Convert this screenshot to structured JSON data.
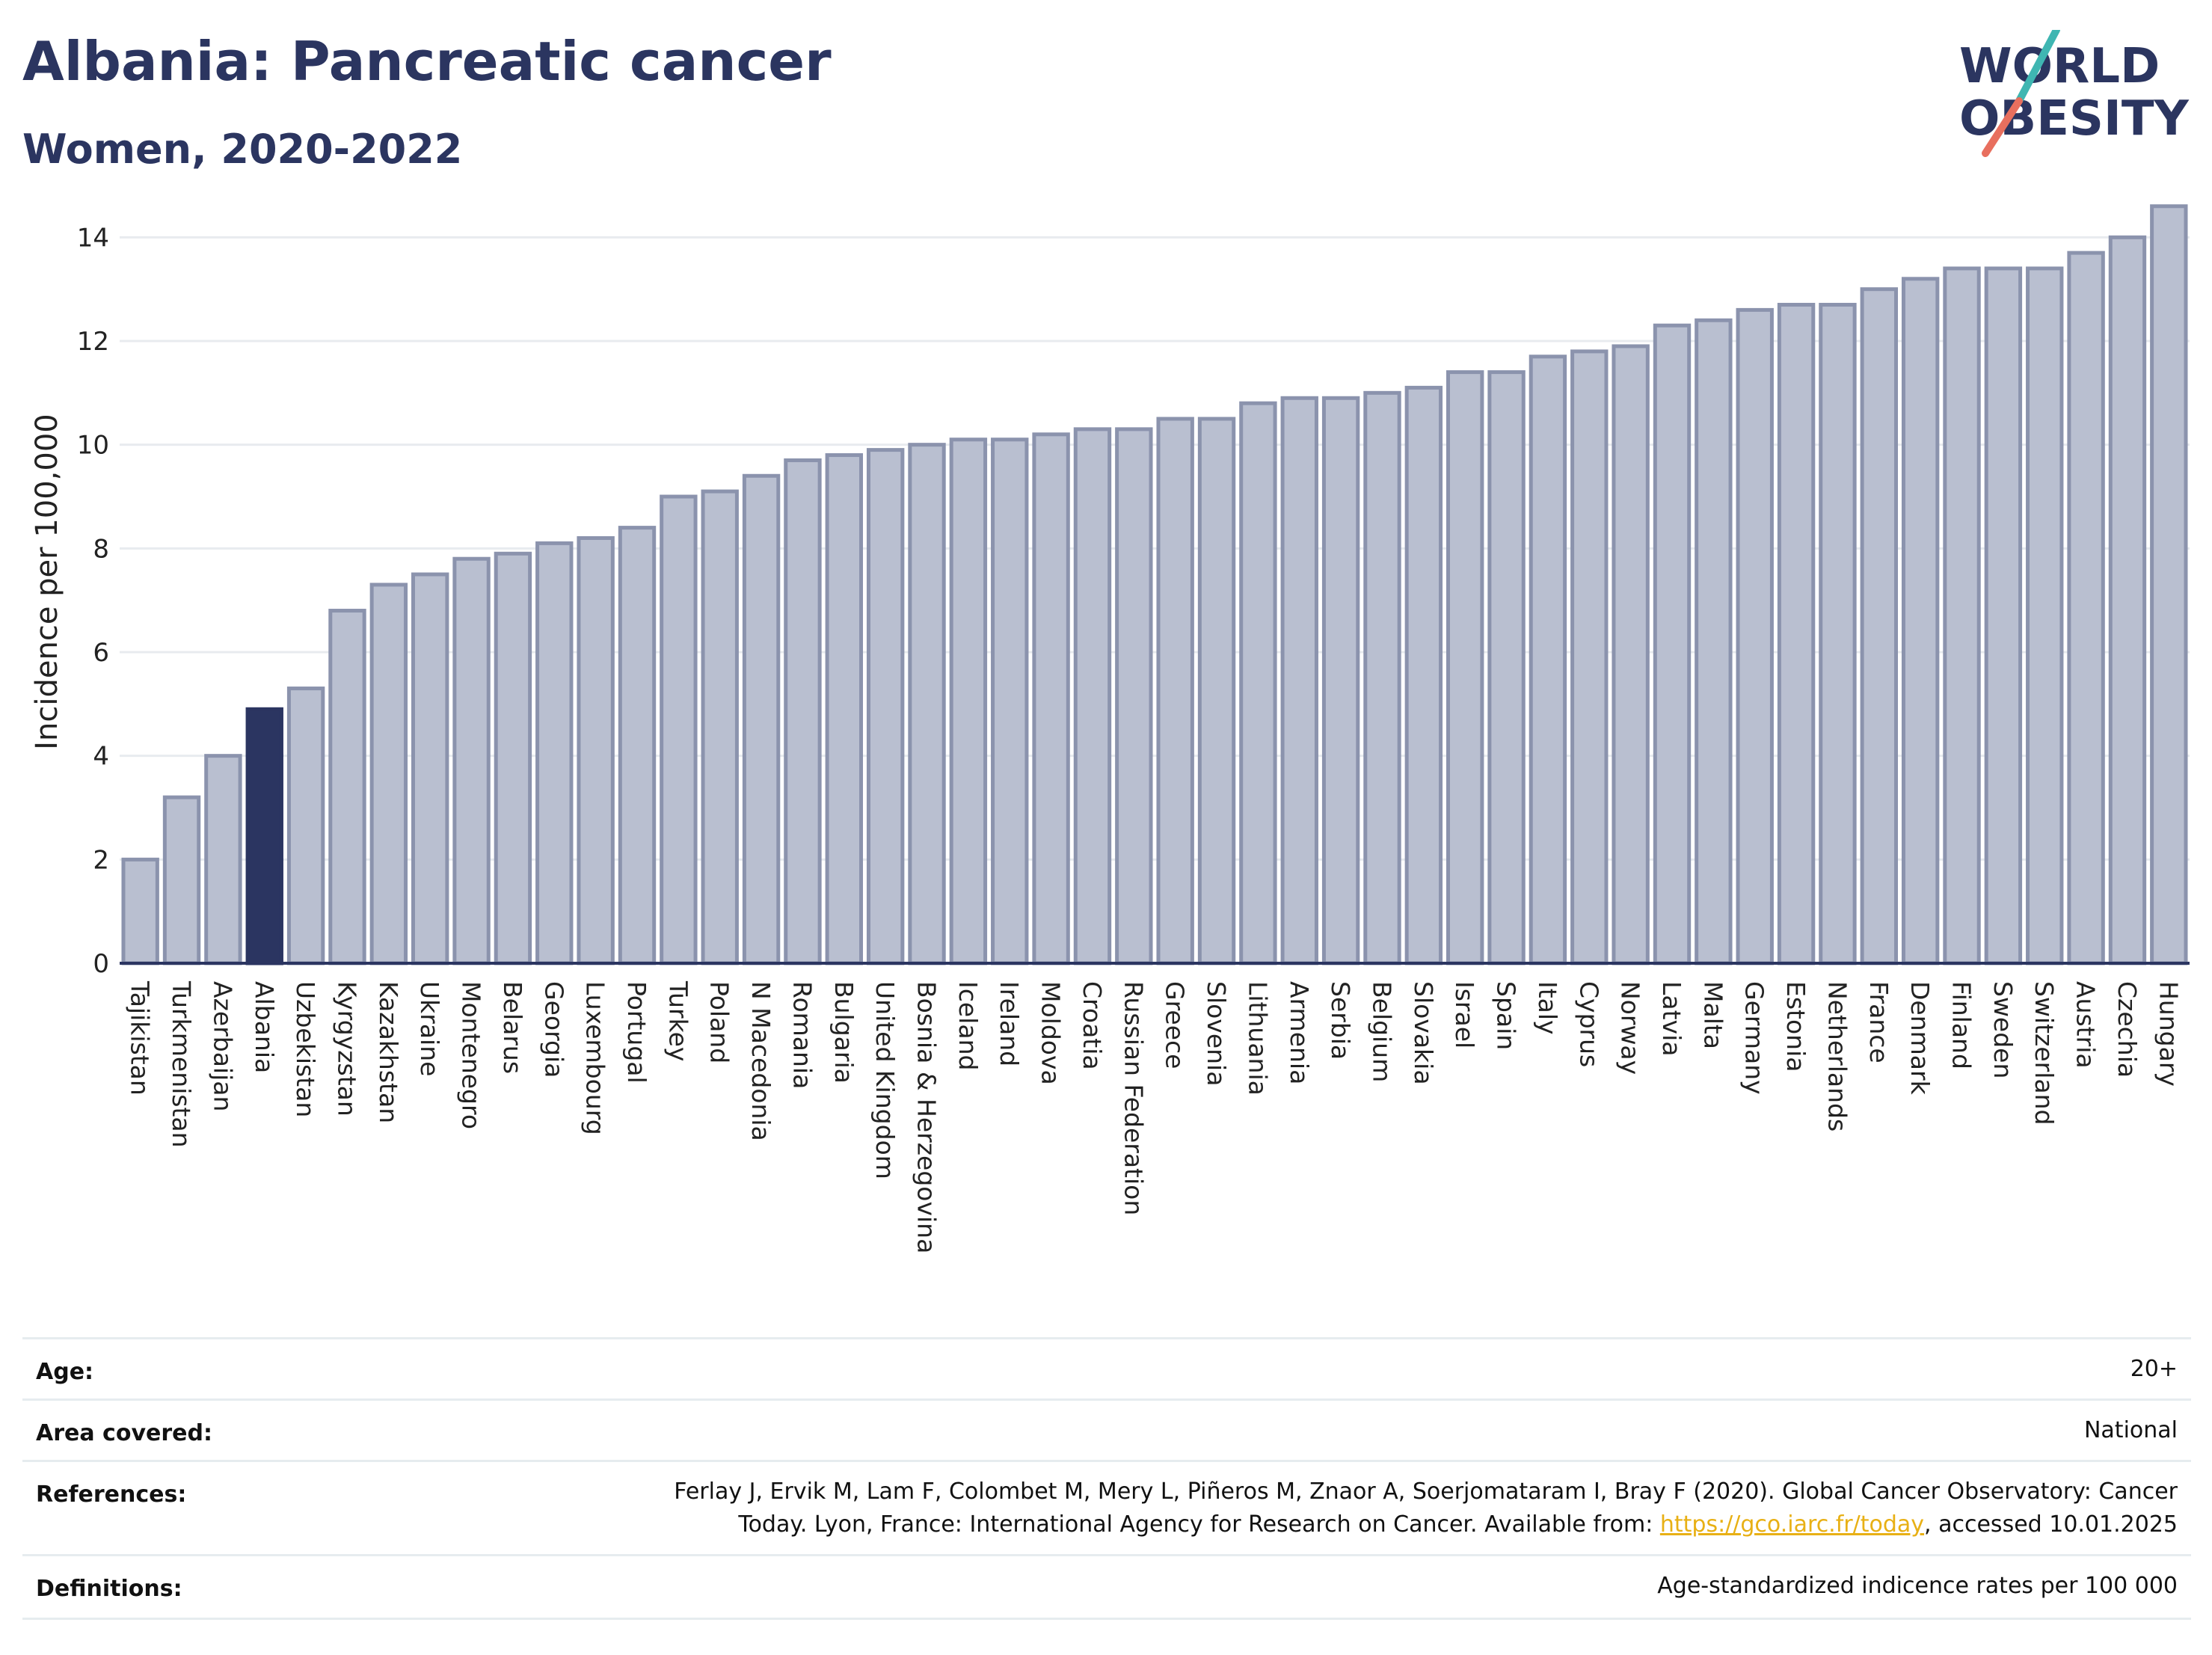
{
  "header": {
    "title": "Albania: Pancreatic cancer",
    "subtitle": "Women, 2020-2022"
  },
  "logo": {
    "line1": "WORLD",
    "line2": "OBESITY",
    "accent_colors": [
      "#3fb6b2",
      "#e86f5e"
    ]
  },
  "chart_data": {
    "type": "bar",
    "title": "Albania: Pancreatic cancer",
    "subtitle": "Women, 2020-2022",
    "ylabel": "Incidence per 100,000",
    "ylim": [
      0,
      15
    ],
    "yticks": [
      0,
      2,
      4,
      6,
      8,
      10,
      12,
      14
    ],
    "grid": true,
    "highlight": "Albania",
    "highlight_color": "#2b3561",
    "bar_color": "#b9bfd0",
    "bar_edge_color": "#8b93ad",
    "categories": [
      "Tajikistan",
      "Turkmenistan",
      "Azerbaijan",
      "Albania",
      "Uzbekistan",
      "Kyrgyzstan",
      "Kazakhstan",
      "Ukraine",
      "Montenegro",
      "Belarus",
      "Georgia",
      "Luxembourg",
      "Portugal",
      "Turkey",
      "Poland",
      "N Macedonia",
      "Romania",
      "Bulgaria",
      "United Kingdom",
      "Bosnia & Herzegovina",
      "Iceland",
      "Ireland",
      "Moldova",
      "Croatia",
      "Russian Federation",
      "Greece",
      "Slovenia",
      "Lithuania",
      "Armenia",
      "Serbia",
      "Belgium",
      "Slovakia",
      "Israel",
      "Spain",
      "Italy",
      "Cyprus",
      "Norway",
      "Latvia",
      "Malta",
      "Germany",
      "Estonia",
      "Netherlands",
      "France",
      "Denmark",
      "Finland",
      "Sweden",
      "Switzerland",
      "Austria",
      "Czechia",
      "Hungary"
    ],
    "values": [
      2.0,
      3.2,
      4.0,
      4.9,
      5.3,
      6.8,
      7.3,
      7.5,
      7.8,
      7.9,
      8.1,
      8.2,
      8.4,
      9.0,
      9.1,
      9.4,
      9.7,
      9.8,
      9.9,
      10.0,
      10.1,
      10.1,
      10.2,
      10.3,
      10.3,
      10.5,
      10.5,
      10.8,
      10.9,
      10.9,
      11.0,
      11.1,
      11.4,
      11.4,
      11.7,
      11.8,
      11.9,
      12.3,
      12.4,
      12.6,
      12.7,
      12.7,
      13.0,
      13.2,
      13.4,
      13.4,
      13.4,
      13.7,
      14.0,
      14.6
    ]
  },
  "meta": {
    "rows": [
      {
        "key": "Age:",
        "value": "20+"
      },
      {
        "key": "Area covered:",
        "value": "National"
      },
      {
        "key": "References:",
        "value_line1": "Ferlay J, Ervik M, Lam F, Colombet M, Mery L, Piñeros M, Znaor A, Soerjomataram I, Bray F (2020). Global Cancer Observatory: Cancer",
        "value_line2_pre": "Today. Lyon, France: International Agency for Research on Cancer. Available from: ",
        "link": "https://gco.iarc.fr/today",
        "value_line2_post": ", accessed 10.01.2025"
      },
      {
        "key": "Definitions:",
        "value": "Age-standardized indicence rates per 100 000"
      }
    ]
  }
}
